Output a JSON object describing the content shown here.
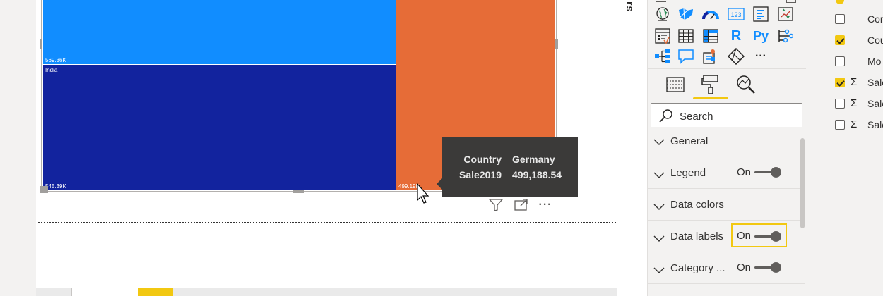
{
  "canvas": {
    "treemap": {
      "tiles": [
        {
          "label": "569.36K",
          "color": "#118dff"
        },
        {
          "label": "India",
          "color": "#12239e"
        },
        {
          "label": "545.39K",
          "color": "#12239e"
        },
        {
          "label": "499.19K",
          "color": "#e66c37"
        }
      ]
    },
    "tooltip": {
      "rows": [
        {
          "key": "Country",
          "value": "Germany"
        },
        {
          "key": "Sale2019",
          "value": "499,188.54"
        }
      ]
    },
    "actions": {
      "filter": "filter-icon",
      "focus": "focus-mode-icon",
      "more": "···"
    }
  },
  "filters_pane": {
    "label": "rs"
  },
  "visualizations": {
    "icons": [
      "globe-map-icon",
      "filled-map-icon",
      "gauge-icon",
      "card-icon",
      "multi-row-card-icon",
      "kpi-icon",
      "slicer-icon",
      "table-icon",
      "matrix-icon",
      "r-visual-icon",
      "python-visual-icon",
      "key-influencers-icon",
      "decomposition-tree-icon",
      "qa-icon",
      "smart-narrative-icon",
      "paginated-report-icon",
      "more-visuals-icon"
    ],
    "python_label": "Py",
    "r_label": "R",
    "card_label": "123",
    "more_label": "···",
    "tabs": [
      "fields-tab",
      "format-tab",
      "analytics-tab"
    ],
    "search": {
      "placeholder": "Search"
    },
    "sections": [
      {
        "label": "General",
        "toggle": null
      },
      {
        "label": "Legend",
        "toggle": "On"
      },
      {
        "label": "Data colors",
        "toggle": null
      },
      {
        "label": "Data labels",
        "toggle": "On"
      },
      {
        "label": "Category ...",
        "toggle": "On"
      }
    ]
  },
  "fields": {
    "items": [
      {
        "label": "Cor",
        "checked": false,
        "sigma": false
      },
      {
        "label": "Cou",
        "checked": true,
        "sigma": false
      },
      {
        "label": "Mo",
        "checked": false,
        "sigma": false
      },
      {
        "label": "Sale",
        "checked": true,
        "sigma": true
      },
      {
        "label": "Sale",
        "checked": false,
        "sigma": true
      },
      {
        "label": "Sale",
        "checked": false,
        "sigma": true
      }
    ],
    "sigma_symbol": "Σ"
  },
  "colors": {
    "accent": "#f2c811",
    "tooltip_bg": "#3b3a39"
  }
}
